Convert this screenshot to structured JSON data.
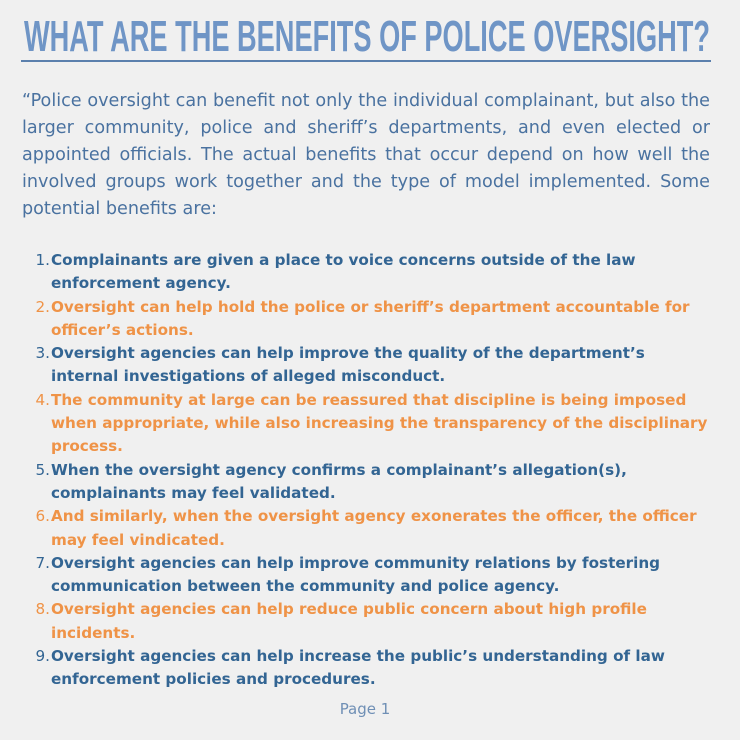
{
  "title": "WHAT ARE THE BENEFITS OF POLICE OVERSIGHT?",
  "intro": "“Police oversight can benefit not only the individual complainant, but also the larger community, police and sheriff’s departments, and even elected or appointed officials. The actual benefits that occur depend on how well the involved groups work together and the type of model implemented. Some potential benefits are:",
  "colors": {
    "title": "#6f95c6",
    "blue": "#336593",
    "orange": "#ef9347",
    "background": "#f0f0f0"
  },
  "benefits": [
    {
      "number": "1.",
      "text": "Complainants are given a place to voice concerns outside of the law enforcement agency."
    },
    {
      "number": "2.",
      "text": "Oversight can help hold the police or sheriff’s department accountable for officer’s actions."
    },
    {
      "number": "3.",
      "text": "Oversight agencies can help improve the quality of the department’s internal investigations of alleged misconduct."
    },
    {
      "number": "4.",
      "text": "The community at large can be reassured that discipline is being imposed when appropriate, while also increasing the transparency of the disciplinary process."
    },
    {
      "number": "5.",
      "text": "When the oversight agency confirms a complainant’s allegation(s), complainants may feel validated."
    },
    {
      "number": "6.",
      "text": "And similarly, when the oversight agency exonerates the officer, the officer may feel vindicated."
    },
    {
      "number": "7.",
      "text": "Oversight agencies can help improve community relations by fostering communication between the community and police agency."
    },
    {
      "number": "8.",
      "text": "Oversight agencies can help reduce public concern about high profile incidents."
    },
    {
      "number": "9.",
      "text": "Oversight agencies can help increase the public’s understanding of law enforcement policies and procedures."
    }
  ],
  "footer": "Page 1"
}
